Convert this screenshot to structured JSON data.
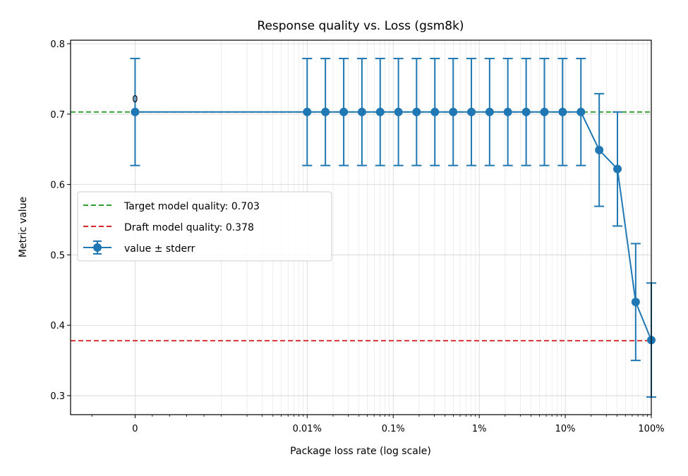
{
  "chart_data": {
    "type": "line",
    "title": "Response quality vs. Loss (gsm8k)",
    "xlabel": "Package loss rate (log scale)",
    "ylabel": "Metric value",
    "xscale": "symlog",
    "xlim": [
      -7.5e-06,
      1.0
    ],
    "ylim": [
      0.273,
      0.805
    ],
    "grid": true,
    "x_ticks": [
      {
        "value": 0,
        "label": "0"
      },
      {
        "value": 0.0001,
        "label": "0.01%"
      },
      {
        "value": 0.001,
        "label": "0.1%"
      },
      {
        "value": 0.01,
        "label": "1%"
      },
      {
        "value": 0.1,
        "label": "10%"
      },
      {
        "value": 1.0,
        "label": "100%"
      }
    ],
    "y_ticks": [
      {
        "value": 0.3,
        "label": "0.3"
      },
      {
        "value": 0.4,
        "label": "0.4"
      },
      {
        "value": 0.5,
        "label": "0.5"
      },
      {
        "value": 0.6,
        "label": "0.6"
      },
      {
        "value": 0.7,
        "label": "0.7"
      },
      {
        "value": 0.8,
        "label": "0.8"
      }
    ],
    "series": [
      {
        "name": "value ± stderr",
        "color": "#1f77b4",
        "x": [
          0,
          0.0001,
          0.000163,
          0.000266,
          0.000433,
          0.000706,
          0.00115,
          0.00187,
          0.00305,
          0.00498,
          0.00811,
          0.0132,
          0.0215,
          0.0351,
          0.0572,
          0.0932,
          0.152,
          0.248,
          0.404,
          0.658,
          1.0
        ],
        "values": [
          0.703,
          0.703,
          0.703,
          0.703,
          0.703,
          0.703,
          0.703,
          0.703,
          0.703,
          0.703,
          0.703,
          0.703,
          0.703,
          0.703,
          0.703,
          0.703,
          0.703,
          0.649,
          0.622,
          0.433,
          0.379
        ],
        "stderr": [
          0.076,
          0.076,
          0.076,
          0.076,
          0.076,
          0.076,
          0.076,
          0.076,
          0.076,
          0.076,
          0.076,
          0.076,
          0.076,
          0.076,
          0.076,
          0.076,
          0.076,
          0.08,
          0.081,
          0.083,
          0.081
        ]
      }
    ],
    "hlines": [
      {
        "name": "Target model quality: 0.703",
        "value": 0.703,
        "color": "#2ca02c"
      },
      {
        "name": "Draft model quality: 0.378",
        "value": 0.378,
        "color": "#d62728"
      }
    ],
    "annotations": [
      {
        "text": "0",
        "x": 0,
        "y": 0.703
      }
    ],
    "legend": {
      "position": "center-left",
      "entries": [
        "Target model quality: 0.703",
        "Draft model quality: 0.378",
        "value ± stderr"
      ]
    }
  }
}
